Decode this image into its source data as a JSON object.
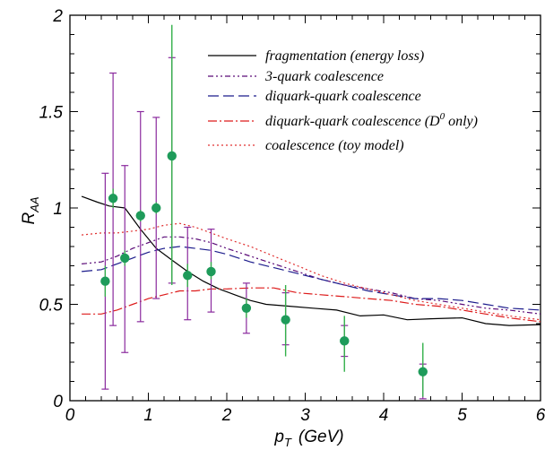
{
  "chart_data": {
    "type": "line",
    "xlabel": {
      "main": "p",
      "sub": "T",
      "unit": "(GeV)"
    },
    "ylabel": {
      "main": "R",
      "sub": "AA"
    },
    "xlim": [
      0,
      6
    ],
    "ylim": [
      0,
      2
    ],
    "x_ticks": [
      0,
      1,
      2,
      3,
      4,
      5,
      6
    ],
    "x_tick_labels": [
      "0",
      "1",
      "2",
      "3",
      "4",
      "5",
      "6"
    ],
    "y_ticks": [
      0,
      0.5,
      1,
      1.5,
      2
    ],
    "y_tick_labels": [
      "0",
      "0.5",
      "1",
      "1.5",
      "2"
    ],
    "grid": false,
    "legend_position": "top-right",
    "series": [
      {
        "name": "fragmentation (energy loss)",
        "color": "#000000",
        "dash": "solid",
        "x": [
          0.15,
          0.35,
          0.5,
          0.7,
          0.9,
          1.1,
          1.3,
          1.5,
          1.7,
          1.9,
          2.1,
          2.3,
          2.5,
          2.8,
          3.1,
          3.4,
          3.7,
          4.0,
          4.3,
          4.6,
          5.0,
          5.3,
          5.6,
          6.0
        ],
        "y": [
          1.06,
          1.03,
          1.01,
          1.0,
          0.89,
          0.79,
          0.73,
          0.67,
          0.62,
          0.58,
          0.55,
          0.52,
          0.5,
          0.49,
          0.48,
          0.47,
          0.44,
          0.445,
          0.42,
          0.425,
          0.43,
          0.4,
          0.39,
          0.395
        ]
      },
      {
        "name": "3-quark coalescence",
        "color": "#5a0a78",
        "dash": "6,3,2,3,2,3",
        "x": [
          0.15,
          0.4,
          0.6,
          0.8,
          1.0,
          1.2,
          1.4,
          1.6,
          1.8,
          2.0,
          2.3,
          2.6,
          2.9,
          3.2,
          3.5,
          3.8,
          4.1,
          4.4,
          4.7,
          5.0,
          5.3,
          5.6,
          6.0
        ],
        "y": [
          0.71,
          0.72,
          0.75,
          0.79,
          0.82,
          0.85,
          0.85,
          0.84,
          0.82,
          0.79,
          0.75,
          0.71,
          0.67,
          0.63,
          0.6,
          0.58,
          0.56,
          0.53,
          0.52,
          0.5,
          0.48,
          0.47,
          0.45
        ]
      },
      {
        "name": "diquark-quark coalescence",
        "color": "#1c1c8c",
        "dash": "12,5",
        "x": [
          0.15,
          0.4,
          0.6,
          0.8,
          1.0,
          1.2,
          1.4,
          1.6,
          1.8,
          2.0,
          2.3,
          2.6,
          2.9,
          3.2,
          3.5,
          3.8,
          4.1,
          4.4,
          4.7,
          5.0,
          5.3,
          5.6,
          6.0
        ],
        "y": [
          0.67,
          0.68,
          0.71,
          0.74,
          0.77,
          0.79,
          0.8,
          0.79,
          0.78,
          0.76,
          0.72,
          0.69,
          0.66,
          0.63,
          0.6,
          0.57,
          0.55,
          0.53,
          0.53,
          0.52,
          0.5,
          0.48,
          0.47
        ]
      },
      {
        "name": "diquark-quark coalescence (D only)",
        "legend_superscript": "0",
        "color": "#dd1a1a",
        "dash": "10,3,2,3",
        "x": [
          0.15,
          0.4,
          0.6,
          0.8,
          1.0,
          1.2,
          1.4,
          1.6,
          1.8,
          2.0,
          2.3,
          2.6,
          2.9,
          3.2,
          3.5,
          3.8,
          4.1,
          4.4,
          4.7,
          5.0,
          5.3,
          5.6,
          6.0
        ],
        "y": [
          0.45,
          0.45,
          0.47,
          0.5,
          0.53,
          0.55,
          0.57,
          0.57,
          0.58,
          0.58,
          0.585,
          0.585,
          0.56,
          0.55,
          0.54,
          0.53,
          0.52,
          0.5,
          0.49,
          0.47,
          0.45,
          0.43,
          0.41
        ]
      },
      {
        "name": "coalescence (toy model)",
        "color": "#e03030",
        "dash": "2,3",
        "x": [
          0.15,
          0.4,
          0.6,
          0.8,
          1.0,
          1.2,
          1.4,
          1.6,
          1.8,
          2.0,
          2.3,
          2.6,
          2.9,
          3.2,
          3.5,
          3.8,
          4.1,
          4.4,
          4.7,
          5.0,
          5.3,
          5.6,
          6.0
        ],
        "y": [
          0.86,
          0.87,
          0.87,
          0.88,
          0.89,
          0.91,
          0.92,
          0.9,
          0.87,
          0.84,
          0.8,
          0.75,
          0.7,
          0.65,
          0.61,
          0.58,
          0.55,
          0.52,
          0.5,
          0.48,
          0.46,
          0.44,
          0.42
        ]
      }
    ],
    "data_points": {
      "marker_color": "#1e9b5a",
      "x": [
        0.45,
        0.55,
        0.7,
        0.9,
        1.1,
        1.3,
        1.5,
        1.8,
        2.25,
        2.75,
        3.5,
        4.5
      ],
      "y": [
        0.62,
        1.05,
        0.74,
        0.96,
        1.0,
        1.27,
        0.65,
        0.67,
        0.48,
        0.42,
        0.31,
        0.15
      ],
      "sys_err_color": "#8a2a9e",
      "sys_err": [
        [
          0.06,
          1.18
        ],
        [
          0.39,
          1.7
        ],
        [
          0.25,
          1.22
        ],
        [
          0.41,
          1.5
        ],
        [
          0.53,
          1.47
        ],
        [
          0.61,
          1.78
        ],
        [
          0.42,
          0.9
        ],
        [
          0.46,
          0.89
        ],
        [
          0.35,
          0.61
        ],
        [
          0.29,
          0.56
        ],
        [
          0.23,
          0.39
        ],
        [
          0.01,
          0.19
        ]
      ],
      "stat_err_color": "#33b04a",
      "stat_err": [
        [
          0.54,
          0.7
        ],
        [
          1.0,
          1.1
        ],
        [
          0.7,
          0.78
        ],
        [
          0.93,
          0.99
        ],
        [
          0.97,
          1.03
        ],
        [
          0.6,
          1.95
        ],
        [
          0.59,
          0.71
        ],
        [
          0.63,
          0.72
        ],
        [
          0.43,
          0.53
        ],
        [
          0.23,
          0.6
        ],
        [
          0.15,
          0.44
        ],
        [
          0.02,
          0.3
        ]
      ]
    }
  }
}
